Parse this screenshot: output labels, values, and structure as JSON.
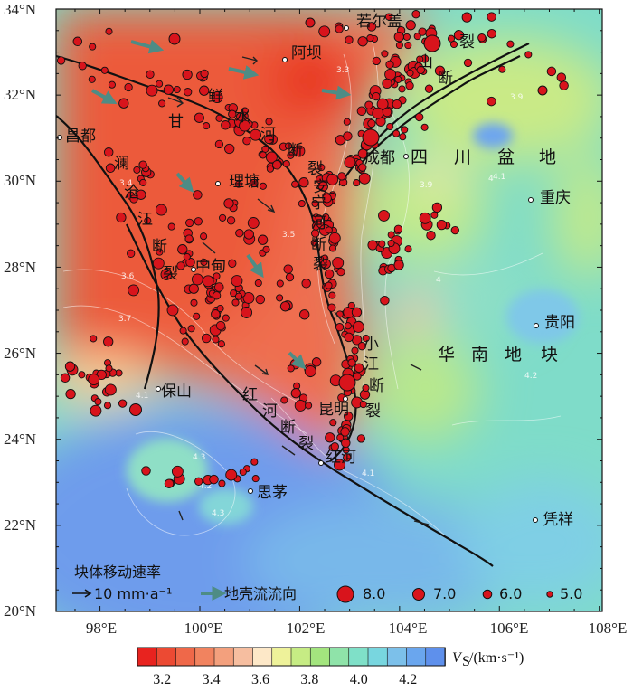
{
  "map": {
    "lat_labels": [
      "34°N",
      "32°N",
      "30°N",
      "28°N",
      "26°N",
      "24°N",
      "22°N",
      "20°N"
    ],
    "lon_labels": [
      "98°E",
      "100°E",
      "102°E",
      "104°E",
      "106°E",
      "108°E"
    ],
    "places": [
      {
        "key": "ruoergai",
        "name": "若尔盖"
      },
      {
        "key": "aba",
        "name": "阿坝"
      },
      {
        "key": "changdu",
        "name": "昌都"
      },
      {
        "key": "litang",
        "name": "理塘"
      },
      {
        "key": "chengdu",
        "name": "成都"
      },
      {
        "key": "chongqing",
        "name": "重庆"
      },
      {
        "key": "zhongdian",
        "name": "中甸"
      },
      {
        "key": "guiyang",
        "name": "贵阳"
      },
      {
        "key": "baoshan",
        "name": "保山"
      },
      {
        "key": "kunming",
        "name": "昆明"
      },
      {
        "key": "honghe",
        "name": "红河"
      },
      {
        "key": "simao",
        "name": "思茅"
      },
      {
        "key": "pingxiang",
        "name": "凭祥"
      }
    ],
    "fault_labels": {
      "xianshuihe": [
        "鲜",
        "水",
        "河",
        "断",
        "裂"
      ],
      "longmenshan_top": [
        "山",
        "断",
        "裂"
      ],
      "anninghe": [
        "安",
        "宁",
        "河",
        "断",
        "裂"
      ],
      "xiaojiang": [
        "小",
        "江",
        "断",
        "裂"
      ],
      "lancangjiang": [
        "澜",
        "沧",
        "江",
        "断",
        "裂"
      ],
      "honghe": [
        "红",
        "河",
        "断",
        "裂"
      ],
      "ganzi": "甘"
    },
    "region_labels": {
      "sichuan_basin": [
        "四",
        "川",
        "盆",
        "地"
      ],
      "south_china": [
        "华",
        "南",
        "地",
        "块"
      ]
    },
    "contour_labels": [
      "3.3",
      "3.4",
      "3.5",
      "3.6",
      "3.7",
      "3.9",
      "4",
      "4.1",
      "4.2",
      "4.3",
      "3.9",
      "4.1",
      "4.2",
      "4.3",
      "4.1",
      "4"
    ]
  },
  "legend": {
    "title": "块体移动速率",
    "velocity_label": "10 mm·a⁻¹",
    "flow_label": "地壳流流向",
    "magnitudes": [
      "8.0",
      "7.0",
      "6.0",
      "5.0"
    ]
  },
  "colorbar": {
    "ticks": [
      "3.2",
      "3.4",
      "3.6",
      "3.8",
      "4.0",
      "4.2"
    ],
    "label_main": "V",
    "label_sub": "S",
    "label_unit": "/(km·s⁻¹)",
    "colors": [
      "#e8231f",
      "#ec4a33",
      "#ef6849",
      "#f1835f",
      "#f3a07d",
      "#f6bea0",
      "#fde8c8",
      "#eef29a",
      "#c6ec84",
      "#a3e57e",
      "#8fe3a9",
      "#7fe0c8",
      "#78d6df",
      "#7cc0ea",
      "#6aa6ee",
      "#5e90ec"
    ]
  },
  "colors": {
    "low_velocity": "#ef6e50",
    "high_velocity": "#6e9cec",
    "quake": "#d8141c",
    "fault": "#111111",
    "flow_arrow": "#4e8c85"
  }
}
